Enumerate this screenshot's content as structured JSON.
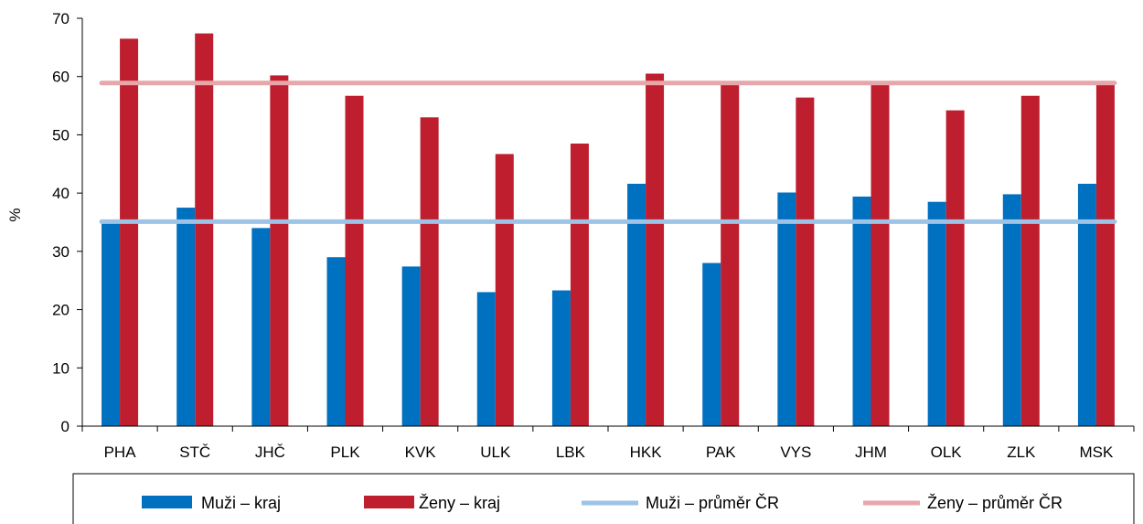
{
  "chart_data": {
    "type": "bar",
    "ylabel": "%",
    "xlabel": "",
    "ylim": [
      0,
      70
    ],
    "yticks": [
      0,
      10,
      20,
      30,
      40,
      50,
      60,
      70
    ],
    "categories": [
      "PHA",
      "STČ",
      "JHČ",
      "PLK",
      "KVK",
      "ULK",
      "LBK",
      "HKK",
      "PAK",
      "VYS",
      "JHM",
      "OLK",
      "ZLK",
      "MSK"
    ],
    "series": [
      {
        "name": "Muži – kraj",
        "type": "bar",
        "color": "#0070c0",
        "values": [
          35.0,
          37.5,
          34.0,
          29.0,
          27.4,
          23.0,
          23.3,
          41.6,
          28.0,
          40.1,
          39.4,
          38.5,
          39.8,
          41.6
        ]
      },
      {
        "name": "Ženy – kraj",
        "type": "bar",
        "color": "#be1e2d",
        "values": [
          66.5,
          67.4,
          60.2,
          56.7,
          53.0,
          46.7,
          48.5,
          60.5,
          58.6,
          56.4,
          58.9,
          54.2,
          56.7,
          58.6
        ]
      },
      {
        "name": "Muži – průměr ČR",
        "type": "line",
        "color": "#9dc3e6",
        "value": 35.1
      },
      {
        "name": "Ženy – průměr ČR",
        "type": "line",
        "color": "#e6a6aa",
        "value": 58.9
      }
    ],
    "grid": false,
    "legend_position": "bottom"
  }
}
